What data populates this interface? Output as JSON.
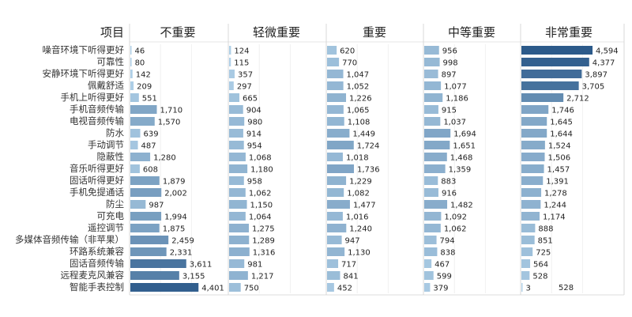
{
  "chart_data": {
    "type": "bar",
    "orientation": "horizontal",
    "row_header": "项目",
    "categories": [
      "噪音环境下听得更好",
      "可靠性",
      "安静环境下听得更好",
      "佩戴舒适",
      "手机上听得更好",
      "手机音频传输",
      "电视音频传输",
      "防水",
      "手动调节",
      "隐蔽性",
      "音乐听得更好",
      "固话听得更好",
      "手机免提通话",
      "防尘",
      "可充电",
      "遥控调节",
      "多媒体音频传输（非苹果）",
      "环路系统兼容",
      "固话音频传输",
      "远程麦克风兼容",
      "智能手表控制"
    ],
    "series": [
      {
        "name": "不重要",
        "values": [
          46,
          80,
          142,
          209,
          551,
          1710,
          1570,
          639,
          487,
          1280,
          608,
          1879,
          2002,
          987,
          1994,
          1875,
          2459,
          2331,
          3611,
          3155,
          4401
        ]
      },
      {
        "name": "轻微重要",
        "values": [
          124,
          115,
          357,
          297,
          665,
          904,
          980,
          914,
          954,
          1068,
          1180,
          958,
          1062,
          1150,
          1064,
          1275,
          1289,
          1316,
          981,
          1217,
          750
        ]
      },
      {
        "name": "重要",
        "values": [
          620,
          770,
          1047,
          1052,
          1226,
          1065,
          1108,
          1449,
          1724,
          1018,
          1736,
          1229,
          1082,
          1477,
          1016,
          1240,
          947,
          1130,
          717,
          841,
          452
        ]
      },
      {
        "name": "中等重要",
        "values": [
          956,
          998,
          897,
          1077,
          1186,
          915,
          1037,
          1694,
          1651,
          1468,
          1359,
          883,
          916,
          1482,
          1092,
          1062,
          794,
          838,
          467,
          599,
          379
        ]
      },
      {
        "name": "非常重要",
        "values": [
          4594,
          4377,
          3897,
          3705,
          2712,
          1746,
          1645,
          1644,
          1524,
          1506,
          1457,
          1391,
          1278,
          1244,
          1174,
          888,
          851,
          725,
          564,
          528,
          3
        ]
      }
    ],
    "stray_label": "528",
    "color_scale": {
      "low": "#b3d3ea",
      "high": "#2c5a8a"
    },
    "grid": true,
    "xlim": [
      0,
      5000
    ]
  }
}
